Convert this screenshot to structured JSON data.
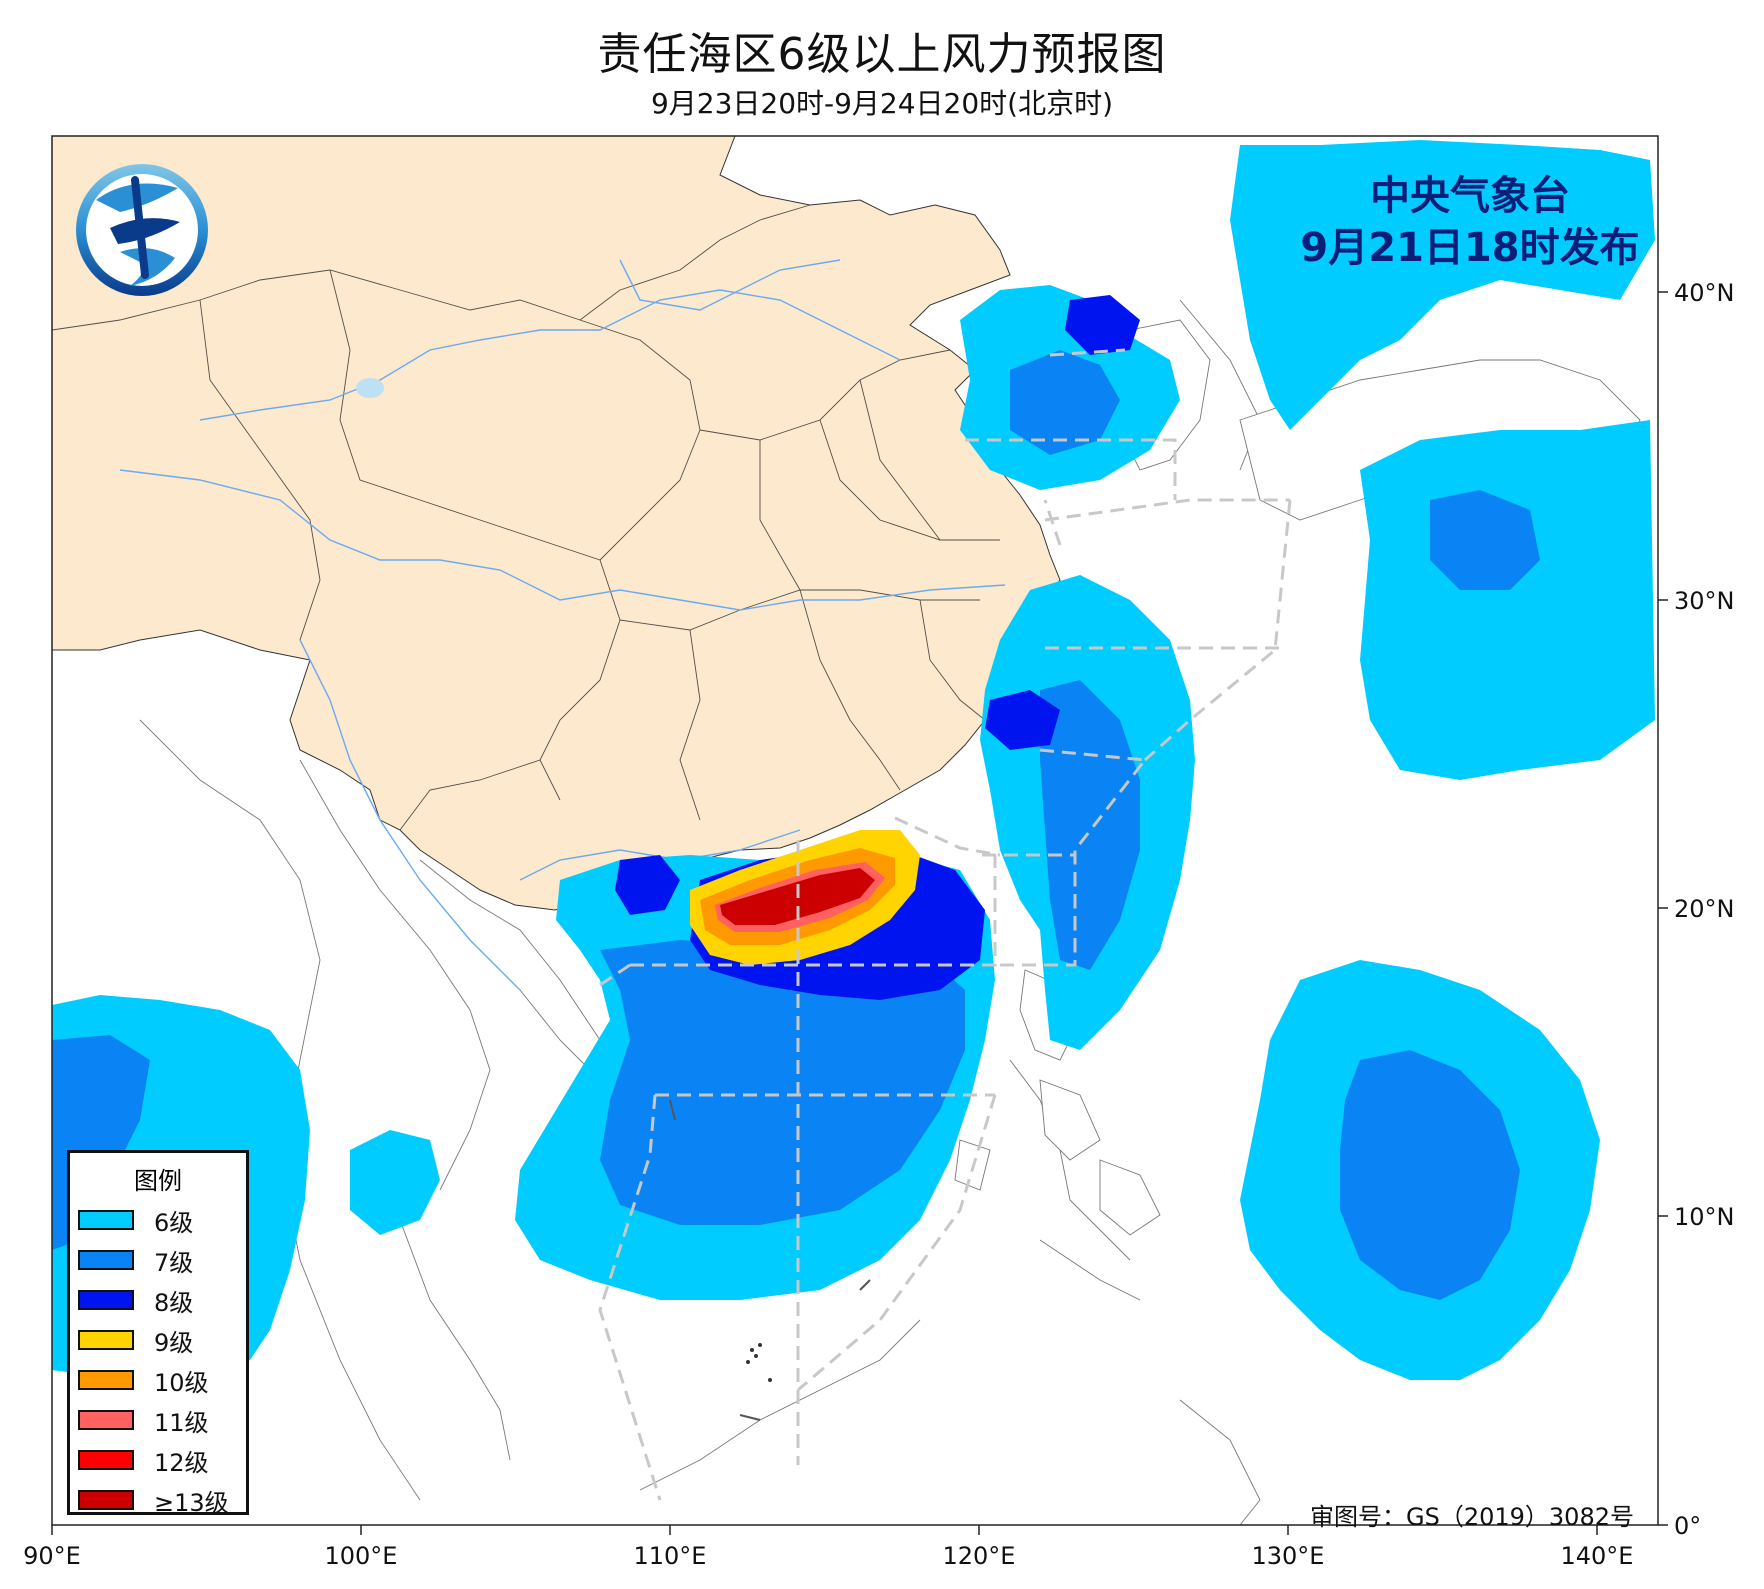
{
  "title": "责任海区6级以上风力预报图",
  "subtitle": "9月23日20时-9月24日20时(北京时)",
  "issuer": {
    "line1": "中央气象台",
    "line2": "9月21日18时发布"
  },
  "review_number": "审图号：GS（2019）3082号",
  "logo": {
    "icon": "cma-logo-icon",
    "colors": [
      "#2a8fd4",
      "#0a3a8a",
      "#7fc6e8"
    ]
  },
  "axes": {
    "lon_labels": [
      "90°E",
      "100°E",
      "110°E",
      "120°E",
      "130°E",
      "140°E"
    ],
    "lat_labels": [
      "0°",
      "10°N",
      "20°N",
      "30°N",
      "40°N"
    ]
  },
  "legend": {
    "title": "图例",
    "items": [
      {
        "label": "6级",
        "color": "#00ccff"
      },
      {
        "label": "7级",
        "color": "#0a84f5"
      },
      {
        "label": "8级",
        "color": "#0014f0"
      },
      {
        "label": "9级",
        "color": "#ffd400"
      },
      {
        "label": "10级",
        "color": "#ff9900"
      },
      {
        "label": "11级",
        "color": "#ff6060"
      },
      {
        "label": "12级",
        "color": "#ff0000"
      },
      {
        "label": "≥13级",
        "color": "#cc0000"
      }
    ]
  },
  "colors": {
    "land": "#fde9cd",
    "ocean": "#ffffff",
    "river": "#6aaaf0",
    "lake": "#bde0f5",
    "sea_zone": "#c8c8c8"
  }
}
